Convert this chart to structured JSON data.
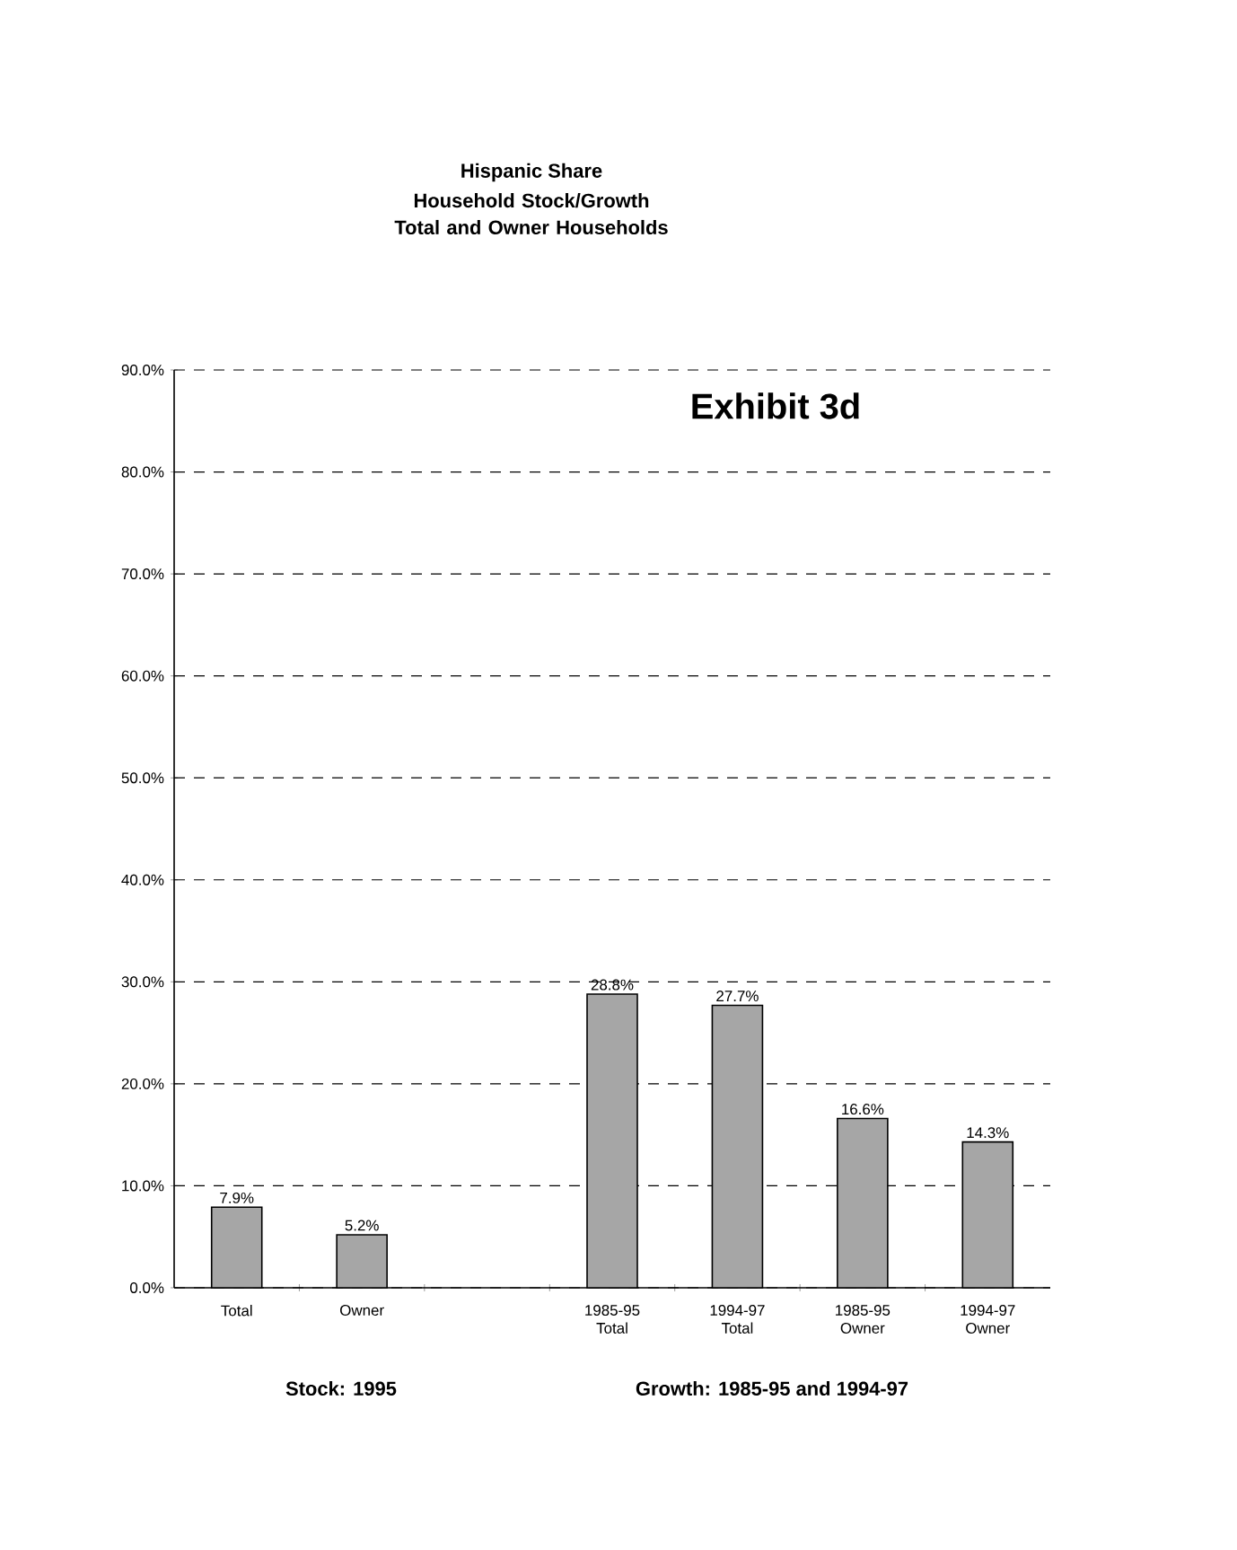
{
  "chart_data": {
    "type": "bar",
    "title": "Hispanic Share",
    "subtitle": "Household Stock/Growth Total and Owner Households",
    "categories": [
      "Total",
      "Owner",
      null,
      "1985-95 Total",
      "1994-97 Total",
      "1985-95 Owner",
      "1994-97 Owner"
    ],
    "values": [
      7.9,
      5.2,
      null,
      28.8,
      27.7,
      16.6,
      14.3
    ],
    "value_labels": [
      "7.9%",
      "5.2%",
      null,
      "28.8%",
      "27.7%",
      "16.6%",
      "14.3%"
    ],
    "color": "#a6a6a6",
    "ylim": [
      0,
      90
    ],
    "yticks": [
      {
        "value": 0,
        "label": "0.0%"
      },
      {
        "value": 10,
        "label": "10.0%"
      },
      {
        "value": 20,
        "label": "20.0%"
      },
      {
        "value": 30,
        "label": "30.0%"
      },
      {
        "value": 40,
        "label": "40.0%"
      },
      {
        "value": 50,
        "label": "50.0%"
      },
      {
        "value": 60,
        "label": "60.0%"
      },
      {
        "value": 70,
        "label": "70.0%"
      },
      {
        "value": 80,
        "label": "80.0%"
      },
      {
        "value": 90,
        "label": "90.0%"
      }
    ],
    "grid": "y",
    "annotations": [
      "Exhibit 3d",
      "Stock: 1995",
      "Growth: 1985-95 and 1994-97"
    ]
  }
}
